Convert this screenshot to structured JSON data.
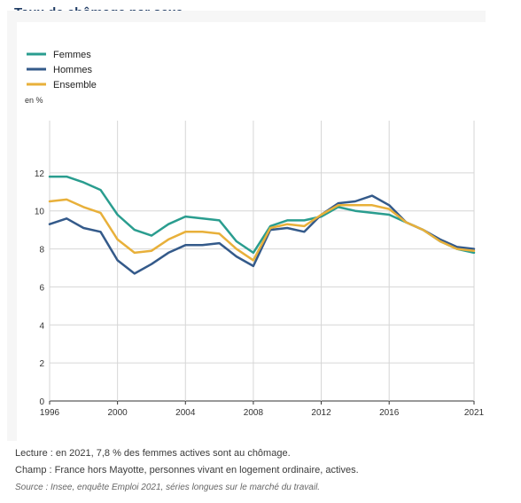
{
  "title": "Taux de chômage par sexe",
  "notes": {
    "lecture": "Lecture : en 2021, 7,8 % des femmes actives sont au chômage.",
    "champ": "Champ : France hors Mayotte, personnes vivant en logement ordinaire, actives.",
    "source": "Source : Insee, enquête Emploi 2021, séries longues sur le marché du travail."
  },
  "chart_data": {
    "type": "line",
    "ylabel": "en %",
    "xlim": [
      1996,
      2021
    ],
    "ylim": [
      0,
      14
    ],
    "x_ticks": [
      "1996",
      "2000",
      "2004",
      "2008",
      "2012",
      "2016",
      "2021"
    ],
    "y_ticks": [
      "0",
      "2",
      "4",
      "6",
      "8",
      "10",
      "12"
    ],
    "grid": true,
    "legend": "top-left",
    "x": [
      1996,
      1997,
      1998,
      1999,
      2000,
      2001,
      2002,
      2003,
      2004,
      2005,
      2006,
      2007,
      2008,
      2009,
      2010,
      2011,
      2012,
      2013,
      2014,
      2015,
      2016,
      2017,
      2018,
      2019,
      2020,
      2021
    ],
    "series": [
      {
        "name": "Femmes",
        "color": "#2a9d8f",
        "values": [
          11.8,
          11.8,
          11.5,
          11.1,
          9.8,
          9.0,
          8.7,
          9.3,
          9.7,
          9.6,
          9.5,
          8.4,
          7.8,
          9.2,
          9.5,
          9.5,
          9.7,
          10.2,
          10.0,
          9.9,
          9.8,
          9.4,
          9.0,
          8.4,
          8.0,
          7.8
        ]
      },
      {
        "name": "Hommes",
        "color": "#345a8a",
        "values": [
          9.3,
          9.6,
          9.1,
          8.9,
          7.4,
          6.7,
          7.2,
          7.8,
          8.2,
          8.2,
          8.3,
          7.6,
          7.1,
          9.0,
          9.1,
          8.9,
          9.8,
          10.4,
          10.5,
          10.8,
          10.3,
          9.4,
          9.0,
          8.5,
          8.1,
          8.0
        ]
      },
      {
        "name": "Ensemble",
        "color": "#e8b03a",
        "values": [
          10.5,
          10.6,
          10.2,
          9.9,
          8.5,
          7.8,
          7.9,
          8.5,
          8.9,
          8.9,
          8.8,
          8.0,
          7.4,
          9.1,
          9.3,
          9.2,
          9.8,
          10.3,
          10.3,
          10.3,
          10.1,
          9.4,
          9.0,
          8.4,
          8.0,
          7.9
        ]
      }
    ]
  }
}
